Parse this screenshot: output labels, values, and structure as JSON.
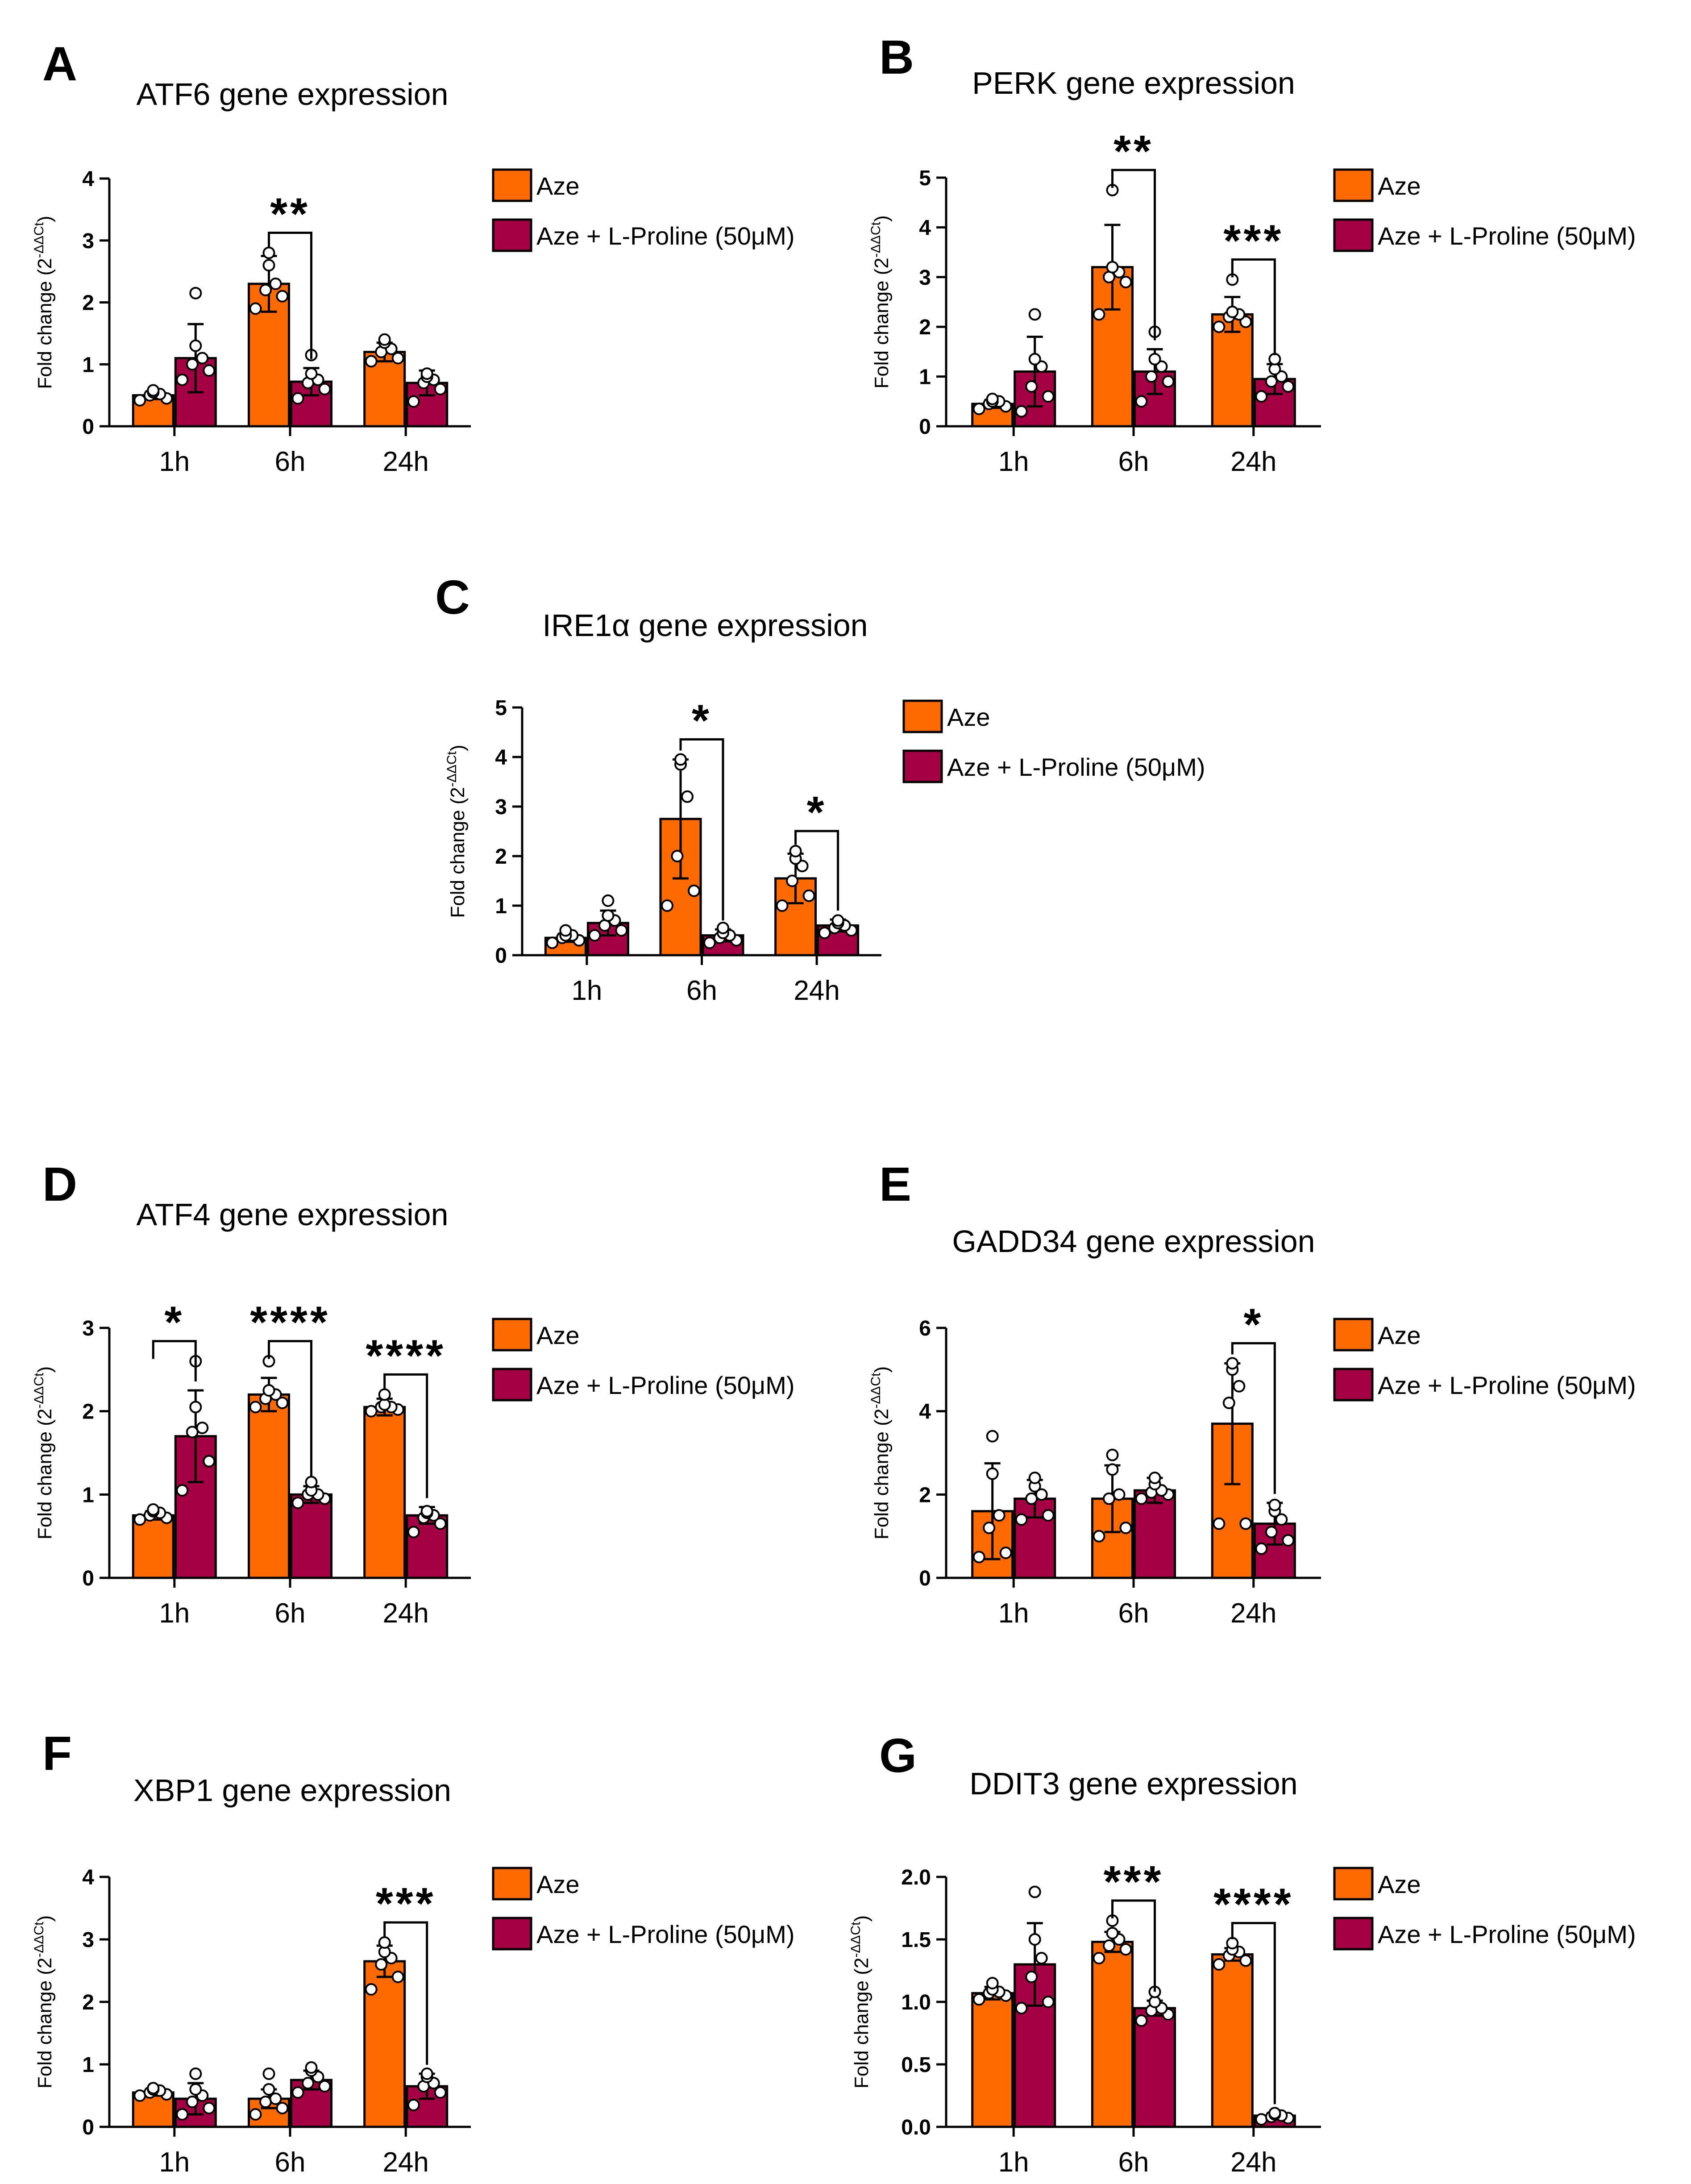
{
  "figure": {
    "colors": {
      "aze": "#ff6a00",
      "pro": "#a50044",
      "axis": "#000000",
      "dot_fill": "#ffffff"
    },
    "legend": {
      "series1": "Aze",
      "series2": "Aze + L-Proline (50μM)"
    },
    "ylabel": "Fold change (2",
    "ylabel_sup": "-ΔΔCt",
    "ylabel_close": ")"
  },
  "chart_data": [
    {
      "panel": "A",
      "type": "bar",
      "title": "ATF6 gene expression",
      "categories": [
        "1h",
        "6h",
        "24h"
      ],
      "ylim": [
        0,
        4
      ],
      "ticks": [
        "0",
        "1",
        "2",
        "3",
        "4"
      ],
      "series": [
        {
          "name": "Aze",
          "values": [
            0.5,
            2.3,
            1.2
          ],
          "errors": [
            0.06,
            0.45,
            0.15
          ]
        },
        {
          "name": "Aze + L-Proline (50μM)",
          "values": [
            1.1,
            0.72,
            0.7
          ],
          "errors": [
            0.55,
            0.22,
            0.2
          ]
        }
      ],
      "points": [
        [
          [
            0.42,
            0.45,
            0.5,
            0.52,
            0.55,
            0.58
          ],
          [
            0.75,
            0.9,
            1.0,
            1.1,
            1.3,
            2.15
          ]
        ],
        [
          [
            1.9,
            2.1,
            2.2,
            2.3,
            2.6,
            2.8
          ],
          [
            0.45,
            0.6,
            0.7,
            0.75,
            0.85,
            1.15
          ]
        ],
        [
          [
            1.05,
            1.1,
            1.2,
            1.25,
            1.35,
            1.4
          ],
          [
            0.4,
            0.6,
            0.7,
            0.75,
            0.8,
            0.85
          ]
        ]
      ],
      "significance": [
        {
          "category": "6h",
          "label": "**"
        }
      ]
    },
    {
      "panel": "B",
      "type": "bar",
      "title": "PERK gene expression",
      "categories": [
        "1h",
        "6h",
        "24h"
      ],
      "ylim": [
        0,
        5
      ],
      "ticks": [
        "0",
        "1",
        "2",
        "3",
        "4",
        "5"
      ],
      "series": [
        {
          "name": "Aze",
          "values": [
            0.45,
            3.2,
            2.25
          ],
          "errors": [
            0.08,
            0.85,
            0.35
          ]
        },
        {
          "name": "Aze + L-Proline (50μM)",
          "values": [
            1.1,
            1.1,
            0.95
          ],
          "errors": [
            0.7,
            0.45,
            0.3
          ]
        }
      ],
      "points": [
        [
          [
            0.35,
            0.4,
            0.45,
            0.5,
            0.5,
            0.55
          ],
          [
            0.3,
            0.6,
            0.8,
            1.2,
            1.35,
            2.25
          ]
        ],
        [
          [
            2.25,
            2.9,
            3.0,
            3.1,
            3.2,
            4.75
          ],
          [
            0.5,
            0.9,
            1.0,
            1.2,
            1.35,
            1.9
          ]
        ],
        [
          [
            2.0,
            2.1,
            2.2,
            2.25,
            2.3,
            2.95
          ],
          [
            0.6,
            0.8,
            0.9,
            1.0,
            1.15,
            1.35
          ]
        ]
      ],
      "significance": [
        {
          "category": "6h",
          "label": "**"
        },
        {
          "category": "24h",
          "label": "***"
        }
      ]
    },
    {
      "panel": "C",
      "type": "bar",
      "title": "IRE1α gene expression",
      "categories": [
        "1h",
        "6h",
        "24h"
      ],
      "ylim": [
        0,
        5
      ],
      "ticks": [
        "0",
        "1",
        "2",
        "3",
        "4",
        "5"
      ],
      "series": [
        {
          "name": "Aze",
          "values": [
            0.35,
            2.75,
            1.55
          ],
          "errors": [
            0.08,
            1.2,
            0.5
          ]
        },
        {
          "name": "Aze + L-Proline (50μM)",
          "values": [
            0.65,
            0.4,
            0.6
          ],
          "errors": [
            0.25,
            0.12,
            0.12
          ]
        }
      ],
      "points": [
        [
          [
            0.25,
            0.3,
            0.35,
            0.4,
            0.4,
            0.5
          ],
          [
            0.4,
            0.5,
            0.6,
            0.7,
            0.8,
            1.1
          ]
        ],
        [
          [
            1.0,
            1.3,
            2.0,
            3.2,
            3.85,
            3.95
          ],
          [
            0.25,
            0.3,
            0.35,
            0.4,
            0.45,
            0.55
          ]
        ],
        [
          [
            1.0,
            1.2,
            1.5,
            1.8,
            1.95,
            2.1
          ],
          [
            0.45,
            0.5,
            0.55,
            0.6,
            0.65,
            0.7
          ]
        ]
      ],
      "significance": [
        {
          "category": "6h",
          "label": "*"
        },
        {
          "category": "24h",
          "label": "*"
        }
      ]
    },
    {
      "panel": "D",
      "type": "bar",
      "title": "ATF4 gene expression",
      "categories": [
        "1h",
        "6h",
        "24h"
      ],
      "ylim": [
        0,
        3
      ],
      "ticks": [
        "0",
        "1",
        "2",
        "3"
      ],
      "series": [
        {
          "name": "Aze",
          "values": [
            0.75,
            2.2,
            2.05
          ],
          "errors": [
            0.05,
            0.2,
            0.1
          ]
        },
        {
          "name": "Aze + L-Proline (50μM)",
          "values": [
            1.7,
            1.0,
            0.75
          ],
          "errors": [
            0.55,
            0.1,
            0.1
          ]
        }
      ],
      "points": [
        [
          [
            0.7,
            0.72,
            0.75,
            0.78,
            0.8,
            0.82
          ],
          [
            1.05,
            1.4,
            1.75,
            1.8,
            2.05,
            2.6
          ]
        ],
        [
          [
            2.05,
            2.1,
            2.15,
            2.2,
            2.25,
            2.6
          ],
          [
            0.9,
            0.95,
            1.0,
            1.0,
            1.05,
            1.15
          ]
        ],
        [
          [
            2.0,
            2.02,
            2.05,
            2.05,
            2.08,
            2.2
          ],
          [
            0.55,
            0.65,
            0.72,
            0.75,
            0.78,
            0.8
          ]
        ]
      ],
      "significance": [
        {
          "category": "1h",
          "label": "*"
        },
        {
          "category": "6h",
          "label": "****"
        },
        {
          "category": "24h",
          "label": "****"
        }
      ]
    },
    {
      "panel": "E",
      "type": "bar",
      "title": "GADD34 gene expression",
      "categories": [
        "1h",
        "6h",
        "24h"
      ],
      "ylim": [
        0,
        6
      ],
      "ticks": [
        "0",
        "2",
        "4",
        "6"
      ],
      "series": [
        {
          "name": "Aze",
          "values": [
            1.6,
            1.9,
            3.7
          ],
          "errors": [
            1.15,
            0.8,
            1.45
          ]
        },
        {
          "name": "Aze + L-Proline (50μM)",
          "values": [
            1.9,
            2.1,
            1.3
          ],
          "errors": [
            0.45,
            0.3,
            0.5
          ]
        }
      ],
      "points": [
        [
          [
            0.5,
            0.6,
            1.2,
            1.5,
            2.5,
            3.4
          ],
          [
            1.4,
            1.5,
            1.9,
            2.0,
            2.2,
            2.4
          ]
        ],
        [
          [
            1.0,
            1.2,
            1.9,
            2.0,
            2.6,
            2.95
          ],
          [
            1.9,
            2.0,
            2.05,
            2.1,
            2.25,
            2.4
          ]
        ],
        [
          [
            1.3,
            1.3,
            4.2,
            4.6,
            5.0,
            5.15
          ],
          [
            0.7,
            0.9,
            1.1,
            1.4,
            1.6,
            1.75
          ]
        ]
      ],
      "significance": [
        {
          "category": "24h",
          "label": "*"
        }
      ]
    },
    {
      "panel": "F",
      "type": "bar",
      "title": "XBP1 gene expression",
      "categories": [
        "1h",
        "6h",
        "24h"
      ],
      "ylim": [
        0,
        4
      ],
      "ticks": [
        "0",
        "1",
        "2",
        "3",
        "4"
      ],
      "series": [
        {
          "name": "Aze",
          "values": [
            0.55,
            0.45,
            2.65
          ],
          "errors": [
            0.05,
            0.15,
            0.25
          ]
        },
        {
          "name": "Aze + L-Proline (50μM)",
          "values": [
            0.45,
            0.75,
            0.65
          ],
          "errors": [
            0.25,
            0.15,
            0.2
          ]
        }
      ],
      "points": [
        [
          [
            0.5,
            0.52,
            0.55,
            0.58,
            0.6,
            0.62
          ],
          [
            0.2,
            0.3,
            0.4,
            0.5,
            0.6,
            0.85
          ]
        ],
        [
          [
            0.2,
            0.3,
            0.4,
            0.45,
            0.6,
            0.85
          ],
          [
            0.55,
            0.65,
            0.7,
            0.8,
            0.9,
            0.95
          ]
        ],
        [
          [
            2.2,
            2.4,
            2.6,
            2.7,
            2.8,
            2.95
          ],
          [
            0.35,
            0.55,
            0.65,
            0.7,
            0.8,
            0.85
          ]
        ]
      ],
      "significance": [
        {
          "category": "24h",
          "label": "***"
        }
      ]
    },
    {
      "panel": "G",
      "type": "bar",
      "title": "DDIT3 gene expression",
      "categories": [
        "1h",
        "6h",
        "24h"
      ],
      "ylim": [
        0,
        2.0
      ],
      "ticks": [
        "0.0",
        "0.5",
        "1.0",
        "1.5",
        "2.0"
      ],
      "series": [
        {
          "name": "Aze",
          "values": [
            1.07,
            1.48,
            1.38
          ],
          "errors": [
            0.05,
            0.08,
            0.05
          ]
        },
        {
          "name": "Aze + L-Proline (50μM)",
          "values": [
            1.3,
            0.95,
            0.09
          ],
          "errors": [
            0.33,
            0.06,
            0.02
          ]
        }
      ],
      "points": [
        [
          [
            1.02,
            1.05,
            1.07,
            1.08,
            1.1,
            1.15
          ],
          [
            0.95,
            1.0,
            1.2,
            1.35,
            1.5,
            1.88
          ]
        ],
        [
          [
            1.35,
            1.42,
            1.45,
            1.5,
            1.55,
            1.65
          ],
          [
            0.85,
            0.9,
            0.93,
            0.95,
            1.0,
            1.08
          ]
        ],
        [
          [
            1.3,
            1.33,
            1.37,
            1.4,
            1.42,
            1.47
          ],
          [
            0.06,
            0.07,
            0.08,
            0.09,
            0.1,
            0.11
          ]
        ]
      ],
      "significance": [
        {
          "category": "6h",
          "label": "***"
        },
        {
          "category": "24h",
          "label": "****"
        }
      ]
    }
  ]
}
